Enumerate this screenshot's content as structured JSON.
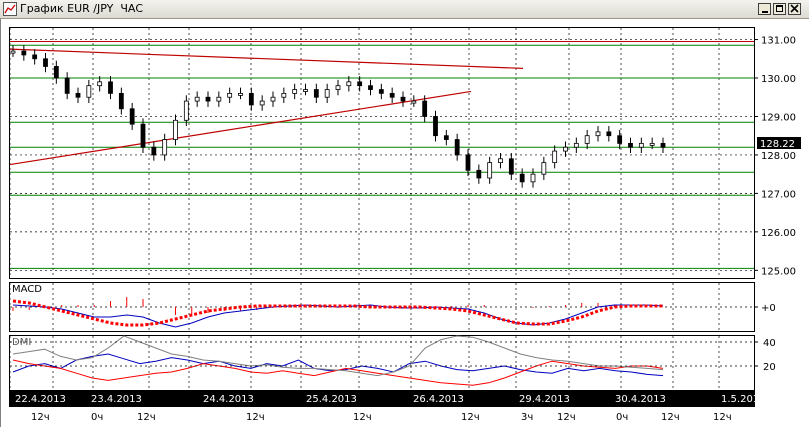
{
  "window": {
    "title": "График EUR /JPY  ЧАС",
    "buttons": [
      "minimize",
      "maximize",
      "close"
    ]
  },
  "colors": {
    "candle": "#000000",
    "grid_green": "#008000",
    "trendline": "#c00000",
    "macd_line": "#0000c0",
    "macd_signal": "#ff0000",
    "dmi_plus": "#0000c0",
    "dmi_minus": "#ff0000",
    "adx": "#808080"
  },
  "price_panel": {
    "current_price": "128.22",
    "y_ticks": [
      "131.00",
      "130.00",
      "129.00",
      "128.00",
      "127.00",
      "126.00",
      "125.00"
    ]
  },
  "macd_panel": {
    "label": "MACD",
    "zero_label": "+0"
  },
  "dmi_panel": {
    "label": "DMI",
    "y_ticks": [
      "40",
      "20"
    ]
  },
  "time_axis": {
    "dates": [
      "22.4.2013",
      "23.4.2013",
      "24.4.2013",
      "25.4.2013",
      "26.4.2013",
      "29.4.2013",
      "30.4.2013",
      "1.5.2013"
    ],
    "hour_labels": [
      "12ч",
      "0ч",
      "12ч",
      "12ч",
      "12ч",
      "12ч",
      "3ч",
      "12ч",
      "0ч",
      "12ч",
      "12ч"
    ]
  },
  "chart_data": [
    {
      "type": "line",
      "title": "",
      "series": [
        {
          "name": "",
          "values": [
            130.7,
            130.6,
            130.5,
            130.3,
            130.0,
            129.6,
            129.5,
            129.8,
            129.9,
            129.6,
            129.2,
            128.8,
            128.2,
            128.0,
            128.4,
            128.9,
            129.4,
            129.5,
            129.4,
            129.5,
            129.6,
            129.6,
            129.3,
            129.4,
            129.5,
            129.6,
            129.7,
            129.7,
            129.5,
            129.7,
            129.8,
            129.9,
            129.8,
            129.7,
            129.6,
            129.5,
            129.4,
            129.4,
            129.0,
            128.5,
            128.4,
            128.0,
            127.6,
            127.4,
            127.8,
            127.9,
            127.5,
            127.3,
            127.5,
            127.8,
            128.1,
            128.2,
            128.3,
            128.5,
            128.6,
            128.5,
            128.3,
            128.2,
            128.3,
            128.3,
            128.2
          ]
        }
      ],
      "ylim": [
        124.8,
        131.3
      ]
    },
    {
      "type": "line",
      "title": "",
      "series": [
        {
          "name": "MACD",
          "values": [
            0.1,
            0.05,
            0.0,
            -0.1,
            -0.3,
            -0.5,
            -0.5,
            -0.4,
            -0.5,
            -0.8,
            -1.0,
            -0.8,
            -0.5,
            -0.3,
            -0.2,
            -0.1,
            0.0,
            0.05,
            0.1,
            0.05,
            0.0,
            0.05,
            0.1,
            0.0,
            -0.05,
            -0.05,
            0.0,
            -0.05,
            -0.1,
            -0.3,
            -0.6,
            -0.8,
            -0.9,
            -0.8,
            -0.6,
            -0.3,
            0.0,
            0.1,
            0.1,
            0.1,
            0.05
          ]
        },
        {
          "name": "Signal",
          "values": [
            0.3,
            0.2,
            0.0,
            -0.2,
            -0.4,
            -0.6,
            -0.8,
            -0.9,
            -0.9,
            -0.8,
            -0.6,
            -0.4,
            -0.2,
            -0.1,
            0.0,
            0.05,
            0.05,
            0.05,
            0.05,
            0.05,
            0.05,
            0.05,
            0.0,
            0.0,
            0.0,
            0.0,
            -0.05,
            -0.1,
            -0.2,
            -0.4,
            -0.6,
            -0.8,
            -0.85,
            -0.85,
            -0.7,
            -0.5,
            -0.2,
            0.0,
            0.05,
            0.05,
            0.05
          ]
        }
      ]
    },
    {
      "type": "line",
      "title": "",
      "series": [
        {
          "name": "+DI",
          "values": [
            15,
            20,
            22,
            18,
            25,
            28,
            30,
            26,
            22,
            24,
            27,
            25,
            22,
            24,
            20,
            18,
            22,
            20,
            25,
            18,
            16,
            17,
            20,
            18,
            15,
            22,
            24,
            20,
            17,
            16,
            18,
            20,
            17,
            15,
            14,
            18,
            16,
            18,
            16,
            15,
            13,
            12
          ]
        },
        {
          "name": "-DI",
          "values": [
            25,
            22,
            20,
            18,
            14,
            10,
            8,
            10,
            12,
            14,
            15,
            18,
            22,
            20,
            18,
            15,
            14,
            16,
            14,
            12,
            15,
            18,
            16,
            14,
            12,
            10,
            8,
            6,
            5,
            4,
            6,
            10,
            15,
            20,
            24,
            22,
            20,
            19,
            18,
            20,
            20,
            18
          ]
        },
        {
          "name": "ADX",
          "values": [
            30,
            32,
            34,
            28,
            25,
            27,
            35,
            45,
            40,
            35,
            30,
            28,
            25,
            24,
            22,
            20,
            21,
            19,
            18,
            18,
            17,
            16,
            14,
            12,
            15,
            20,
            35,
            42,
            45,
            44,
            40,
            35,
            30,
            27,
            25,
            24,
            22,
            20,
            20,
            19,
            18,
            17
          ]
        }
      ],
      "ylim": [
        0,
        45
      ]
    }
  ]
}
